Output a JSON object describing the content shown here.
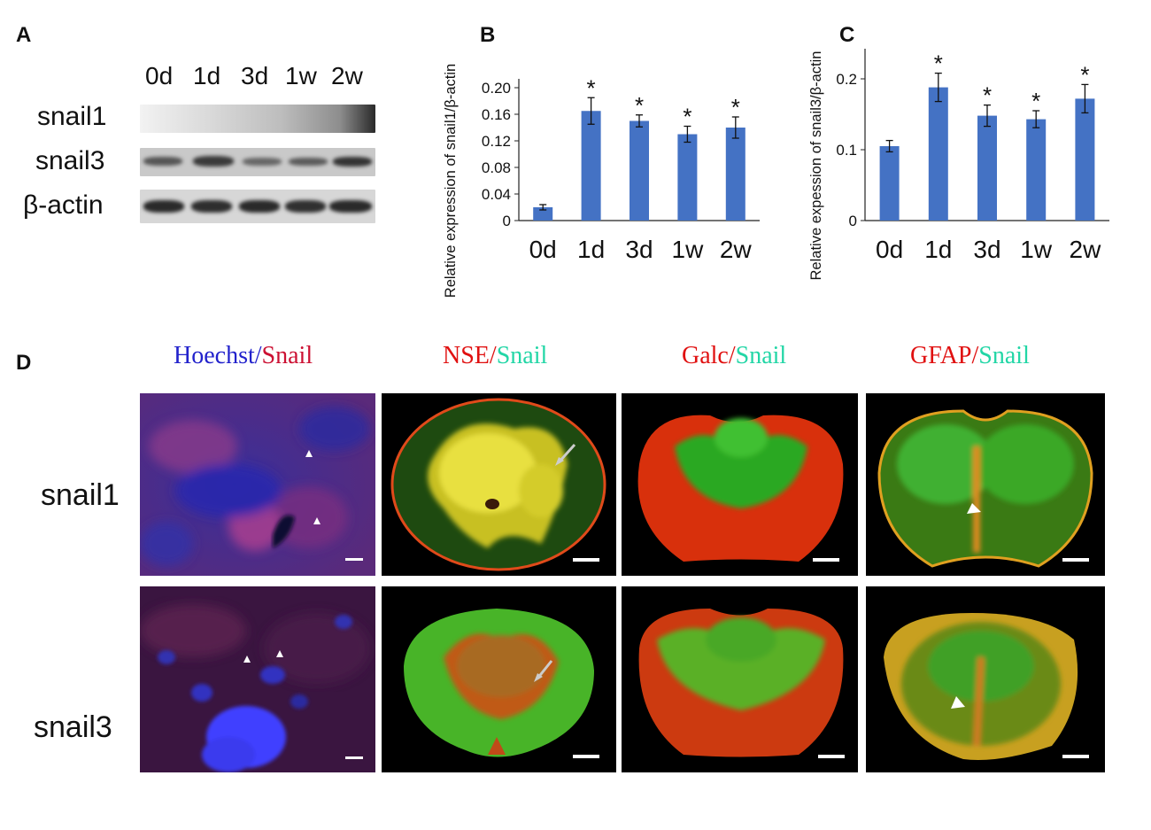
{
  "panels": {
    "a": "A",
    "b": "B",
    "c": "C",
    "d": "D"
  },
  "western_blot": {
    "lanes": [
      "0d",
      "1d",
      "3d",
      "1w",
      "2w"
    ],
    "rows": [
      "snail1",
      "snail3",
      "β-actin"
    ]
  },
  "chart_data": [
    {
      "type": "bar",
      "categories": [
        "0d",
        "1d",
        "3d",
        "1w",
        "2w"
      ],
      "values": [
        0.02,
        0.165,
        0.15,
        0.13,
        0.14
      ],
      "errors": [
        0.004,
        0.02,
        0.009,
        0.012,
        0.016
      ],
      "significant": [
        "",
        "*",
        "*",
        "*",
        "*"
      ],
      "ylabel": "Relative expression of snail1/β-actin",
      "ylim": [
        0,
        0.2
      ],
      "yticks": [
        "0",
        "0.04",
        "0.08",
        "0.12",
        "0.16",
        "0.20"
      ],
      "ytick_values": [
        0,
        0.04,
        0.08,
        0.12,
        0.16,
        0.2
      ],
      "bar_color": "#4472C4"
    },
    {
      "type": "bar",
      "categories": [
        "0d",
        "1d",
        "3d",
        "1w",
        "2w"
      ],
      "values": [
        0.105,
        0.188,
        0.148,
        0.143,
        0.172
      ],
      "errors": [
        0.008,
        0.02,
        0.015,
        0.012,
        0.02
      ],
      "significant": [
        "",
        "*",
        "*",
        "*",
        "*"
      ],
      "ylabel": "Relative expession of snail3/β-actin",
      "ylim": [
        0,
        0.23
      ],
      "yticks": [
        "0",
        "0.1",
        "0.2"
      ],
      "ytick_values": [
        0,
        0.1,
        0.2
      ],
      "bar_color": "#4472C4"
    }
  ],
  "immuno": {
    "columns": [
      {
        "a": "Hoechst",
        "b": "Snail",
        "a_color": "#2222cc",
        "b_color": "#cc1133"
      },
      {
        "a": "NSE",
        "b": "Snail",
        "a_color": "#e01010",
        "b_color": "#22d6a6"
      },
      {
        "a": "Galc",
        "b": "Snail",
        "a_color": "#e01010",
        "b_color": "#22d6a6"
      },
      {
        "a": "GFAP",
        "b": "Snail",
        "a_color": "#e01010",
        "b_color": "#22d6a6"
      }
    ],
    "sep": "/",
    "rows": [
      "snail1",
      "snail3"
    ]
  }
}
